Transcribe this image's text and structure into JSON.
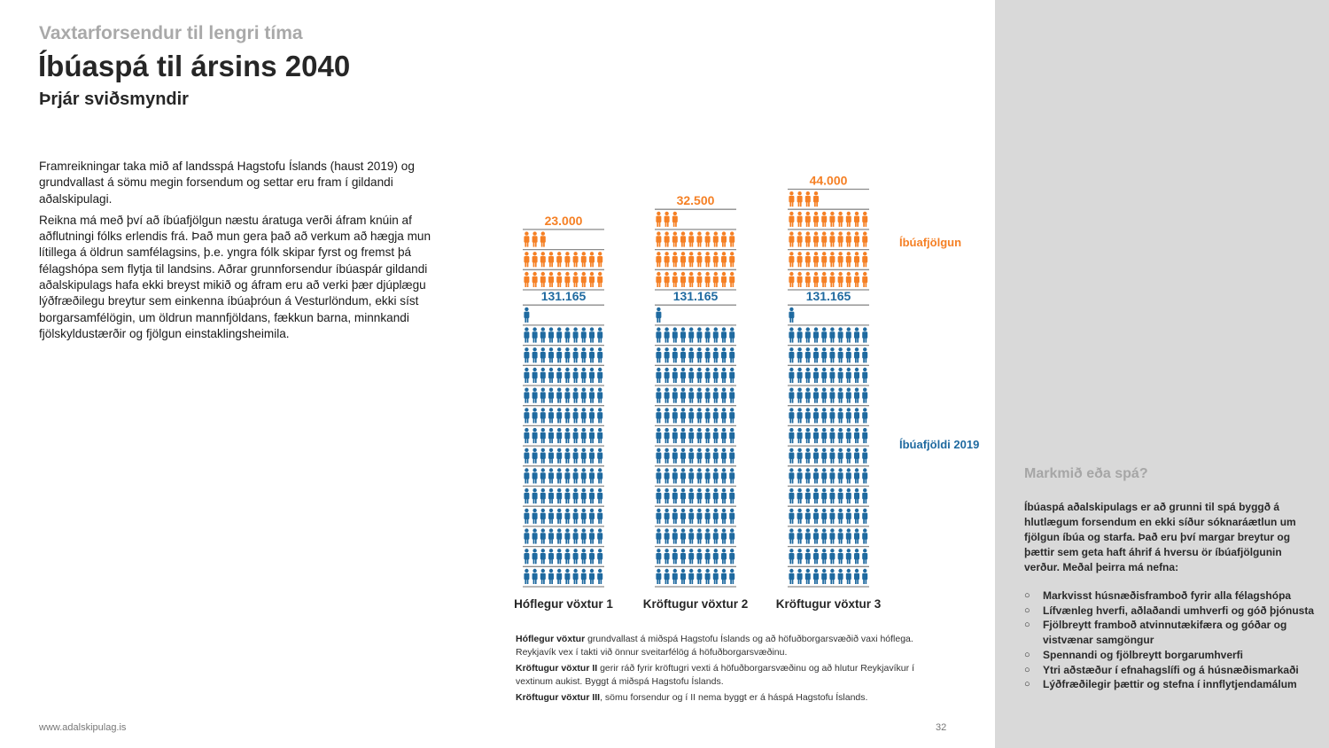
{
  "header": {
    "kicker": "Vaxtarforsendur til lengri tíma",
    "title": "Íbúaspá til ársins 2040",
    "subtitle": "Þrjár sviðsmyndir"
  },
  "intro": [
    "Framreikningar taka mið af landsspá Hagstofu Íslands (haust 2019) og grundvallast á sömu megin forsendum og settar eru fram í gildandi aðalskipulagi.",
    "Reikna má með því að íbúafjölgun næstu áratuga verði áfram knúin af aðflutningi fólks erlendis frá. Það mun gera það að verkum að hægja mun lítillega á öldrun samfélagsins, þ.e. yngra fólk skipar fyrst og fremst þá félagshópa sem flytja til landsins. Aðrar grunnforsendur íbúaspár gildandi aðalskipulags hafa ekki breyst mikið og áfram eru að verki þær djúplægu lýðfræðilegu breytur sem einkenna íbúaþróun á Vesturlöndum, ekki síst borgarsamfélögin, um öldrun mannfjöldans, fækkun barna, minnkandi fjölskyldustærðir og fjölgun einstaklingsheimila."
  ],
  "chart_data": {
    "type": "pictograph",
    "categories": [
      "Hóflegur vöxtur 1",
      "Kröftugur vöxtur 2",
      "Kröftugur vöxtur 3"
    ],
    "series": [
      {
        "name": "Íbúafjöldi 2019",
        "values": [
          131165,
          131165,
          131165
        ],
        "labels": [
          "131.165",
          "131.165",
          "131.165"
        ],
        "color": "#1f6aa0"
      },
      {
        "name": "Íbúafjölgun",
        "values": [
          23000,
          32500,
          44000
        ],
        "labels": [
          "23.000",
          "32.500",
          "44.000"
        ],
        "color": "#f58025"
      }
    ],
    "icon": "person-icon",
    "per_icon": 1000,
    "icons_per_row": 10,
    "stacked": true
  },
  "notes": [
    {
      "bold": "Hóflegur vöxtur",
      "text": " grundvallast á miðspá Hagstofu Íslands og að höfuðborgarsvæðið vaxi hóflega. Reykjavík vex í takti við önnur sveitarfélög á höfuðborgarsvæðinu."
    },
    {
      "bold": "Kröftugur vöxtur II",
      "text": " gerir ráð fyrir kröftugri vexti á höfuðborgarsvæðinu og að hlutur Reykjavíkur í vextinum aukist. Byggt á miðspá Hagstofu Íslands."
    },
    {
      "bold": "Kröftugur vöxtur III",
      "text": ", sömu forsendur og í II nema byggt er á háspá Hagstofu Íslands."
    }
  ],
  "panel": {
    "title": "Markmið eða spá?",
    "body": "Íbúaspá aðalskipulags er að grunni til spá byggð á hlutlægum forsendum en ekki síður sóknaráætlun um fjölgun íbúa og starfa. Það eru því margar breytur og þættir sem geta haft áhrif á hversu ör íbúafjölgunin verður. Meðal þeirra má nefna:",
    "items": [
      "Markvisst húsnæðisframboð fyrir alla félagshópa",
      "Lífvænleg hverfi, aðlaðandi umhverfi og góð þjónusta",
      "Fjölbreytt framboð atvinnutækifæra og góðar og vistvænar samgöngur",
      "Spennandi og fjölbreytt borgarumhverfi",
      "Ytri aðstæður í efnahagslífi og á húsnæðismarkaði",
      "Lýðfræðilegir þættir og stefna í innflytjendamálum"
    ]
  },
  "footer": {
    "url": "www.adalskipulag.is",
    "page": "32"
  }
}
